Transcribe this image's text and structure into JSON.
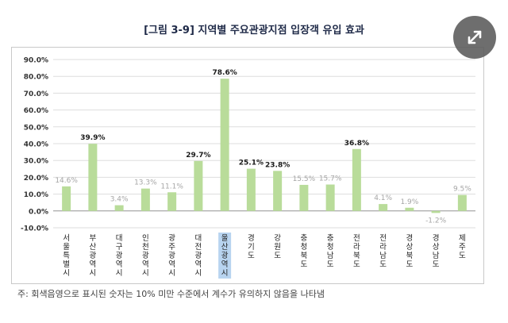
{
  "title": "[그림 3-9] 지역별 주요관광지점 입장객 유입 효과",
  "footnote": "주: 회색음영으로 표시된 숫자는 10% 미만 수준에서 계수가 유의하지 않음을 나타냄",
  "colors": {
    "bar": "#b9dc9a",
    "highlight_bg": "#b8d4f0",
    "label_bold": "#1a1a1a",
    "label_grey": "#a6a6a6",
    "grid": "#dddddd",
    "axis": "#9a9a9a"
  },
  "expand_button": {
    "icon": "expand-arrows-icon"
  },
  "chart_data": {
    "type": "bar",
    "title": "",
    "ylim": [
      -10,
      90
    ],
    "yticks": [
      "-10.0%",
      "0.0%",
      "10.0%",
      "20.0%",
      "30.0%",
      "40.0%",
      "50.0%",
      "60.0%",
      "70.0%",
      "80.0%",
      "90.0%"
    ],
    "ytick_values": [
      -10,
      0,
      10,
      20,
      30,
      40,
      50,
      60,
      70,
      80,
      90
    ],
    "grid": true,
    "categories": [
      "서울특별시",
      "부산광역시",
      "대구광역시",
      "인천광역시",
      "광주광역시",
      "대전광역시",
      "울산광역시",
      "경기도",
      "강원도",
      "충청북도",
      "충청남도",
      "전라북도",
      "전라남도",
      "경상북도",
      "경상남도",
      "제주도"
    ],
    "values": [
      14.6,
      39.9,
      3.4,
      13.3,
      11.1,
      29.7,
      78.6,
      25.1,
      23.8,
      15.5,
      15.7,
      36.8,
      4.1,
      1.9,
      -1.2,
      9.5
    ],
    "data_labels": [
      "14.6%",
      "39.9%",
      "3.4%",
      "13.3%",
      "11.1%",
      "29.7%",
      "78.6%",
      "25.1%",
      "23.8%",
      "15.5%",
      "15.7%",
      "36.8%",
      "4.1%",
      "1.9%",
      "-1.2%",
      "9.5%"
    ],
    "significant": [
      false,
      true,
      false,
      false,
      false,
      true,
      true,
      true,
      true,
      false,
      false,
      true,
      false,
      false,
      false,
      false
    ],
    "highlighted_category": "울산광역시"
  }
}
